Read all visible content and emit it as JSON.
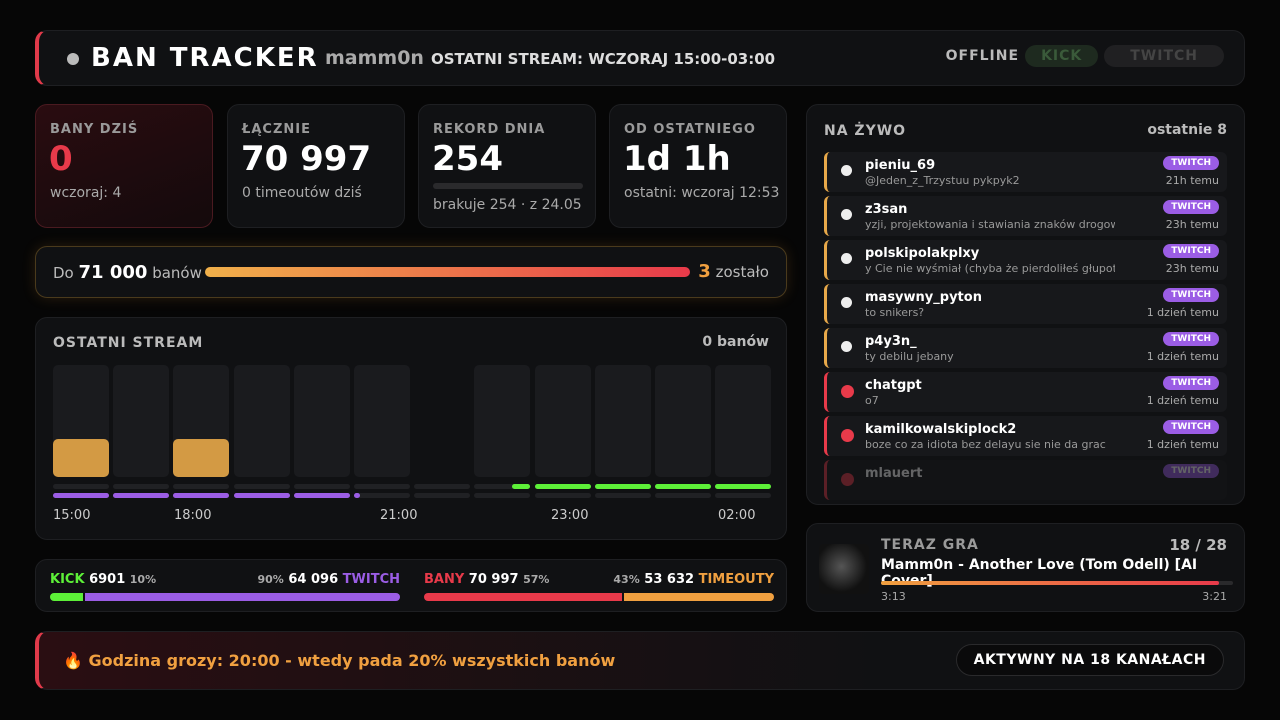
{
  "header": {
    "title": "BAN TRACKER",
    "user": "mamm0n",
    "stream": "OSTATNI STREAM: WCZORAJ 15:00-03:00",
    "status": "OFFLINE",
    "buttons": [
      "KICK",
      "TWITCH"
    ]
  },
  "stats": [
    {
      "label": "BANY DZIŚ",
      "value": "0",
      "sub": "wczoraj: 4"
    },
    {
      "label": "ŁĄCZNIE",
      "value": "70 997",
      "sub": "0 timeoutów dziś"
    },
    {
      "label": "REKORD DNIA",
      "value": "254",
      "sub": "brakuje 254 · z 24.05"
    },
    {
      "label": "OD OSTATNIEGO",
      "value": "1d 1h",
      "sub": "ostatni: wczoraj 12:53"
    }
  ],
  "goal": {
    "prefix": "Do",
    "target": "71 000",
    "suffix": "banów",
    "remaining": "3",
    "remaining_label": "zostało"
  },
  "stream": {
    "title": "OSTATNI STREAM",
    "total": "0 banów",
    "times": [
      "15:00",
      "18:00",
      "21:00",
      "23:00",
      "02:00"
    ]
  },
  "split": [
    {
      "left": {
        "name": "KICK",
        "value": "6901",
        "pct": "10%"
      },
      "right": {
        "name": "TWITCH",
        "value": "64 096",
        "pct": "90%"
      }
    },
    {
      "left": {
        "name": "BANY",
        "value": "70 997",
        "pct": "57%"
      },
      "right": {
        "name": "TIMEOUTY",
        "value": "53 632",
        "pct": "43%"
      }
    }
  ],
  "live": {
    "title": "NA ŻYWO",
    "count": "ostatnie 8",
    "items": [
      {
        "user": "pieniu_69",
        "message": "@Jeden_z_Trzystuu pykpyk2",
        "platform": "TWITCH",
        "time": "21h temu",
        "kind": "timeout"
      },
      {
        "user": "z3san",
        "message": "yzji, projektowania i stawiania znaków drogowych w Polsce",
        "platform": "TWITCH",
        "time": "23h temu",
        "kind": "timeout"
      },
      {
        "user": "polskipolakplxy",
        "message": "y Cie nie wyśmiał (chyba że pierdoliłeś głupoty jak zawsze",
        "platform": "TWITCH",
        "time": "23h temu",
        "kind": "timeout"
      },
      {
        "user": "masywny_pyton",
        "message": "to snikers?",
        "platform": "TWITCH",
        "time": "1 dzień temu",
        "kind": "timeout"
      },
      {
        "user": "p4y3n_",
        "message": "ty debilu jebany",
        "platform": "TWITCH",
        "time": "1 dzień temu",
        "kind": "timeout"
      },
      {
        "user": "chatgpt",
        "message": "o7",
        "platform": "TWITCH",
        "time": "1 dzień temu",
        "kind": "ban"
      },
      {
        "user": "kamilkowalskiplock2",
        "message": "boze co za idiota bez delayu sie nie da grac",
        "platform": "TWITCH",
        "time": "1 dzień temu",
        "kind": "ban"
      },
      {
        "user": "mlauert",
        "platform": "TWITCH",
        "kind": "ban"
      }
    ]
  },
  "now_playing": {
    "label": "TERAZ GRA",
    "position": "18 / 28",
    "title": "Mamm0n - Another Love (Tom Odell) [AI Cover]",
    "elapsed": "3:13",
    "duration": "3:21"
  },
  "footer": {
    "text": "🔥 Godzina grozy: 20:00 - wtedy pada 20% wszystkich banów",
    "badge": "AKTYWNY NA 18 KANAŁACH"
  }
}
